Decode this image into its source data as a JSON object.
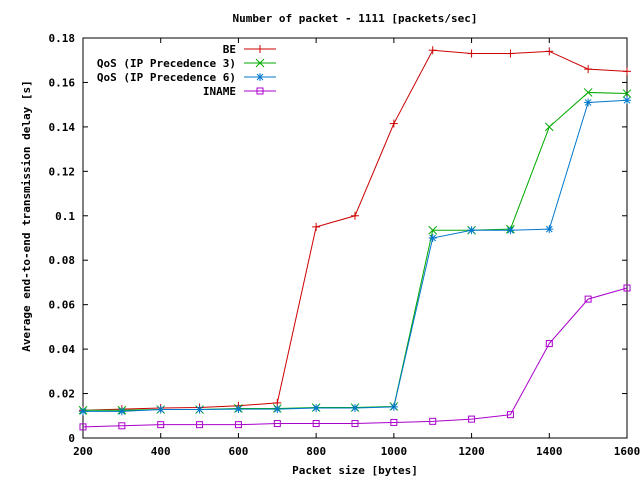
{
  "chart_data": {
    "type": "line",
    "title": "Number of packet - 1111 [packets/sec]",
    "xlabel": "Packet size [bytes]",
    "ylabel": "Average end-to-end transmission delay [s]",
    "xlim": [
      200,
      1600
    ],
    "ylim": [
      0,
      0.18
    ],
    "x_ticks": [
      200,
      400,
      600,
      800,
      1000,
      1200,
      1400,
      1600
    ],
    "y_ticks": [
      0,
      0.02,
      0.04,
      0.06,
      0.08,
      0.1,
      0.12,
      0.14,
      0.16,
      0.18
    ],
    "x_tick_labels": [
      "200",
      "400",
      "600",
      "800",
      "1000",
      "1200",
      "1400",
      "1600"
    ],
    "y_tick_labels": [
      "0",
      "0.02",
      "0.04",
      "0.06",
      "0.08",
      "0.1",
      "0.12",
      "0.14",
      "0.16",
      "0.18"
    ],
    "legend_position": "top-right",
    "grid": false,
    "series": [
      {
        "name": "BE",
        "color": "#cc0000",
        "marker": "plus",
        "x": [
          200,
          300,
          400,
          500,
          600,
          700,
          800,
          900,
          1000,
          1100,
          1200,
          1300,
          1400,
          1500,
          1600
        ],
        "y": [
          0.0125,
          0.013,
          0.0135,
          0.0137,
          0.0145,
          0.0158,
          0.095,
          0.1,
          0.1415,
          0.1745,
          0.173,
          0.173,
          0.174,
          0.166,
          0.165
        ]
      },
      {
        "name": "QoS (IP Precedence 3)",
        "color": "#00aa00",
        "marker": "x",
        "x": [
          200,
          300,
          400,
          500,
          600,
          700,
          800,
          900,
          1000,
          1100,
          1200,
          1300,
          1400,
          1500,
          1600
        ],
        "y": [
          0.0125,
          0.0125,
          0.0128,
          0.0128,
          0.0133,
          0.0133,
          0.0137,
          0.0137,
          0.0142,
          0.0935,
          0.0935,
          0.094,
          0.14,
          0.1555,
          0.155
        ]
      },
      {
        "name": "QoS (IP Precedence 6)",
        "color": "#0077cc",
        "marker": "star",
        "x": [
          200,
          300,
          400,
          500,
          600,
          700,
          800,
          900,
          1000,
          1100,
          1200,
          1300,
          1400,
          1500,
          1600
        ],
        "y": [
          0.012,
          0.012,
          0.0128,
          0.0128,
          0.013,
          0.013,
          0.0135,
          0.0135,
          0.014,
          0.09,
          0.0935,
          0.0935,
          0.094,
          0.151,
          0.152
        ]
      },
      {
        "name": "INAME",
        "color": "#aa00cc",
        "marker": "square",
        "x": [
          200,
          300,
          400,
          500,
          600,
          700,
          800,
          900,
          1000,
          1100,
          1200,
          1300,
          1400,
          1500,
          1600
        ],
        "y": [
          0.005,
          0.0055,
          0.006,
          0.006,
          0.006,
          0.0065,
          0.0065,
          0.0065,
          0.007,
          0.0075,
          0.0085,
          0.0105,
          0.0425,
          0.0625,
          0.0675
        ]
      }
    ]
  }
}
